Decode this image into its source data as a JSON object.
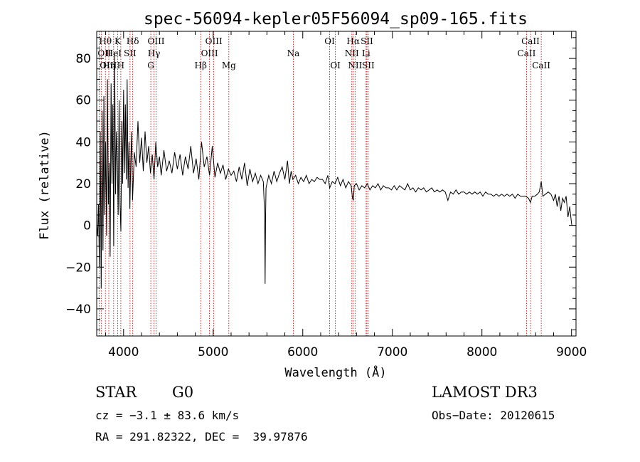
{
  "chart_data": {
    "type": "line",
    "title": "spec-56094-kepler05F56094_sp09-165.fits",
    "xlabel": "Wavelength (Å)",
    "ylabel": "Flux (relative)",
    "xlim": [
      3700,
      9050
    ],
    "ylim": [
      -53,
      93
    ],
    "xticks": [
      4000,
      5000,
      6000,
      7000,
      8000,
      9000
    ],
    "yticks": [
      -40,
      -20,
      0,
      20,
      40,
      60,
      80
    ],
    "x_minor_step": 200,
    "y_minor_step": 5,
    "line_color": "#000000",
    "marker_color": "#cc0000",
    "spectrum": [
      [
        3700,
        0
      ],
      [
        3710,
        -5
      ],
      [
        3720,
        10
      ],
      [
        3730,
        -20
      ],
      [
        3740,
        45
      ],
      [
        3750,
        -30
      ],
      [
        3760,
        55
      ],
      [
        3770,
        -12
      ],
      [
        3780,
        62
      ],
      [
        3790,
        5
      ],
      [
        3800,
        40
      ],
      [
        3810,
        -5
      ],
      [
        3820,
        70
      ],
      [
        3830,
        10
      ],
      [
        3840,
        30
      ],
      [
        3850,
        -15
      ],
      [
        3860,
        68
      ],
      [
        3870,
        20
      ],
      [
        3880,
        58
      ],
      [
        3890,
        -10
      ],
      [
        3900,
        82
      ],
      [
        3910,
        15
      ],
      [
        3920,
        45
      ],
      [
        3930,
        30
      ],
      [
        3940,
        5
      ],
      [
        3950,
        60
      ],
      [
        3960,
        10
      ],
      [
        3970,
        -3
      ],
      [
        3980,
        50
      ],
      [
        3990,
        20
      ],
      [
        4000,
        65
      ],
      [
        4010,
        25
      ],
      [
        4020,
        58
      ],
      [
        4030,
        22
      ],
      [
        4040,
        70
      ],
      [
        4050,
        18
      ],
      [
        4060,
        40
      ],
      [
        4070,
        8
      ],
      [
        4080,
        30
      ],
      [
        4090,
        45
      ],
      [
        4100,
        12
      ],
      [
        4120,
        35
      ],
      [
        4140,
        28
      ],
      [
        4160,
        50
      ],
      [
        4180,
        30
      ],
      [
        4200,
        42
      ],
      [
        4220,
        26
      ],
      [
        4240,
        45
      ],
      [
        4260,
        30
      ],
      [
        4280,
        38
      ],
      [
        4300,
        25
      ],
      [
        4320,
        34
      ],
      [
        4340,
        22
      ],
      [
        4360,
        40
      ],
      [
        4380,
        28
      ],
      [
        4400,
        33
      ],
      [
        4420,
        24
      ],
      [
        4450,
        36
      ],
      [
        4480,
        26
      ],
      [
        4510,
        31
      ],
      [
        4540,
        25
      ],
      [
        4570,
        35
      ],
      [
        4600,
        27
      ],
      [
        4630,
        34
      ],
      [
        4660,
        24
      ],
      [
        4690,
        33
      ],
      [
        4720,
        27
      ],
      [
        4750,
        38
      ],
      [
        4780,
        25
      ],
      [
        4810,
        32
      ],
      [
        4840,
        22
      ],
      [
        4870,
        40
      ],
      [
        4900,
        28
      ],
      [
        4930,
        33
      ],
      [
        4960,
        24
      ],
      [
        4990,
        38
      ],
      [
        5020,
        23
      ],
      [
        5050,
        30
      ],
      [
        5080,
        25
      ],
      [
        5110,
        29
      ],
      [
        5140,
        22
      ],
      [
        5170,
        27
      ],
      [
        5200,
        24
      ],
      [
        5230,
        26
      ],
      [
        5260,
        21
      ],
      [
        5290,
        28
      ],
      [
        5320,
        22
      ],
      [
        5350,
        30
      ],
      [
        5380,
        19
      ],
      [
        5410,
        27
      ],
      [
        5440,
        21
      ],
      [
        5470,
        25
      ],
      [
        5500,
        20
      ],
      [
        5530,
        24
      ],
      [
        5560,
        21
      ],
      [
        5575,
        5
      ],
      [
        5580,
        -28
      ],
      [
        5585,
        5
      ],
      [
        5590,
        18
      ],
      [
        5620,
        24
      ],
      [
        5650,
        20
      ],
      [
        5680,
        26
      ],
      [
        5710,
        21
      ],
      [
        5740,
        25
      ],
      [
        5770,
        28
      ],
      [
        5800,
        22
      ],
      [
        5830,
        31
      ],
      [
        5850,
        20
      ],
      [
        5870,
        26
      ],
      [
        5890,
        22
      ],
      [
        5920,
        24
      ],
      [
        5950,
        20
      ],
      [
        5980,
        23
      ],
      [
        6010,
        21
      ],
      [
        6040,
        24
      ],
      [
        6070,
        20
      ],
      [
        6100,
        22
      ],
      [
        6130,
        21
      ],
      [
        6160,
        23
      ],
      [
        6190,
        22
      ],
      [
        6220,
        22
      ],
      [
        6250,
        20
      ],
      [
        6280,
        24
      ],
      [
        6300,
        18
      ],
      [
        6330,
        21
      ],
      [
        6360,
        20
      ],
      [
        6390,
        23
      ],
      [
        6420,
        19
      ],
      [
        6450,
        22
      ],
      [
        6480,
        18
      ],
      [
        6510,
        21
      ],
      [
        6540,
        19
      ],
      [
        6555,
        13
      ],
      [
        6565,
        12
      ],
      [
        6575,
        19
      ],
      [
        6600,
        20
      ],
      [
        6630,
        17
      ],
      [
        6660,
        19
      ],
      [
        6690,
        18
      ],
      [
        6720,
        20
      ],
      [
        6750,
        17
      ],
      [
        6780,
        19
      ],
      [
        6810,
        18
      ],
      [
        6840,
        20
      ],
      [
        6870,
        17
      ],
      [
        6900,
        19
      ],
      [
        6930,
        18
      ],
      [
        6960,
        18
      ],
      [
        6990,
        17
      ],
      [
        7020,
        19
      ],
      [
        7050,
        17
      ],
      [
        7080,
        19
      ],
      [
        7110,
        18
      ],
      [
        7140,
        17
      ],
      [
        7170,
        20
      ],
      [
        7200,
        17
      ],
      [
        7230,
        18
      ],
      [
        7260,
        16
      ],
      [
        7290,
        18
      ],
      [
        7320,
        17
      ],
      [
        7350,
        18
      ],
      [
        7380,
        16
      ],
      [
        7410,
        17
      ],
      [
        7440,
        18
      ],
      [
        7470,
        16
      ],
      [
        7500,
        17
      ],
      [
        7530,
        16
      ],
      [
        7560,
        17
      ],
      [
        7590,
        16
      ],
      [
        7620,
        12
      ],
      [
        7650,
        16
      ],
      [
        7680,
        15
      ],
      [
        7710,
        17
      ],
      [
        7740,
        15
      ],
      [
        7770,
        16
      ],
      [
        7800,
        16
      ],
      [
        7830,
        15
      ],
      [
        7860,
        16
      ],
      [
        7890,
        15
      ],
      [
        7920,
        16
      ],
      [
        7950,
        15
      ],
      [
        7980,
        16
      ],
      [
        8010,
        14
      ],
      [
        8040,
        16
      ],
      [
        8070,
        15
      ],
      [
        8100,
        15
      ],
      [
        8130,
        14
      ],
      [
        8160,
        15
      ],
      [
        8190,
        14
      ],
      [
        8220,
        15
      ],
      [
        8250,
        14
      ],
      [
        8280,
        15
      ],
      [
        8310,
        14
      ],
      [
        8340,
        15
      ],
      [
        8370,
        13
      ],
      [
        8400,
        15
      ],
      [
        8430,
        14
      ],
      [
        8460,
        14
      ],
      [
        8490,
        14
      ],
      [
        8520,
        13
      ],
      [
        8542,
        11
      ],
      [
        8560,
        14
      ],
      [
        8590,
        14
      ],
      [
        8620,
        15
      ],
      [
        8640,
        16
      ],
      [
        8662,
        21
      ],
      [
        8680,
        14
      ],
      [
        8710,
        15
      ],
      [
        8740,
        16
      ],
      [
        8770,
        15
      ],
      [
        8800,
        12
      ],
      [
        8820,
        15
      ],
      [
        8840,
        9
      ],
      [
        8860,
        14
      ],
      [
        8880,
        7
      ],
      [
        8900,
        13
      ],
      [
        8920,
        11
      ],
      [
        8940,
        14
      ],
      [
        8960,
        4
      ],
      [
        8980,
        9
      ],
      [
        8990,
        5
      ],
      [
        9000,
        1
      ],
      [
        9005,
        0
      ]
    ],
    "lines": [
      {
        "x": 3727,
        "label": "OII",
        "row": 1,
        "anchor": "start"
      },
      {
        "x": 3750,
        "label": "OIII",
        "row": 2,
        "anchor": "start"
      },
      {
        "x": 3797,
        "label": "Hθ",
        "row": 0,
        "anchor": "middle"
      },
      {
        "x": 3835,
        "label": "Hη",
        "row": 2,
        "anchor": "middle"
      },
      {
        "x": 3889,
        "label": "HeI",
        "row": 1,
        "anchor": "middle"
      },
      {
        "x": 3934,
        "label": "K",
        "row": 0,
        "anchor": "middle"
      },
      {
        "x": 3969,
        "label": "H",
        "row": 2,
        "anchor": "middle"
      },
      {
        "x": 4072,
        "label": "SII",
        "row": 1,
        "anchor": "middle"
      },
      {
        "x": 4102,
        "label": "Hδ",
        "row": 0,
        "anchor": "middle"
      },
      {
        "x": 4304,
        "label": "G",
        "row": 2,
        "anchor": "middle"
      },
      {
        "x": 4340,
        "label": "Hγ",
        "row": 1,
        "anchor": "middle"
      },
      {
        "x": 4363,
        "label": "OIII",
        "row": 0,
        "anchor": "middle"
      },
      {
        "x": 4861,
        "label": "Hβ",
        "row": 2,
        "anchor": "middle"
      },
      {
        "x": 4959,
        "label": "OIII",
        "row": 1,
        "anchor": "middle"
      },
      {
        "x": 5007,
        "label": "OIII",
        "row": 0,
        "anchor": "middle"
      },
      {
        "x": 5175,
        "label": "Mg",
        "row": 2,
        "anchor": "middle"
      },
      {
        "x": 5894,
        "label": "Na",
        "row": 1,
        "anchor": "middle"
      },
      {
        "x": 6300,
        "label": "OI",
        "row": 0,
        "anchor": "middle"
      },
      {
        "x": 6364,
        "label": "OI",
        "row": 2,
        "anchor": "middle"
      },
      {
        "x": 6548,
        "label": "NII",
        "row": 1,
        "anchor": "middle"
      },
      {
        "x": 6563,
        "label": "Hα",
        "row": 0,
        "anchor": "middle"
      },
      {
        "x": 6584,
        "label": "NII",
        "row": 2,
        "anchor": "middle"
      },
      {
        "x": 6707,
        "label": "Li",
        "row": 1,
        "anchor": "middle"
      },
      {
        "x": 6716,
        "label": "SII",
        "row": 0,
        "anchor": "middle"
      },
      {
        "x": 6731,
        "label": "SII",
        "row": 2,
        "anchor": "middle"
      },
      {
        "x": 8498,
        "label": "CaII",
        "row": 1,
        "anchor": "middle"
      },
      {
        "x": 8542,
        "label": "CaII",
        "row": 0,
        "anchor": "middle"
      },
      {
        "x": 8662,
        "label": "CaII",
        "row": 2,
        "anchor": "middle"
      }
    ]
  },
  "info": {
    "class": "STAR",
    "subclass": "G0",
    "survey": "LAMOST DR3",
    "cz": "cz = −3.1 ± 83.6 km/s",
    "obs_date": "Obs−Date: 20120615",
    "coords": "RA = 291.82322, DEC =  39.97876"
  }
}
